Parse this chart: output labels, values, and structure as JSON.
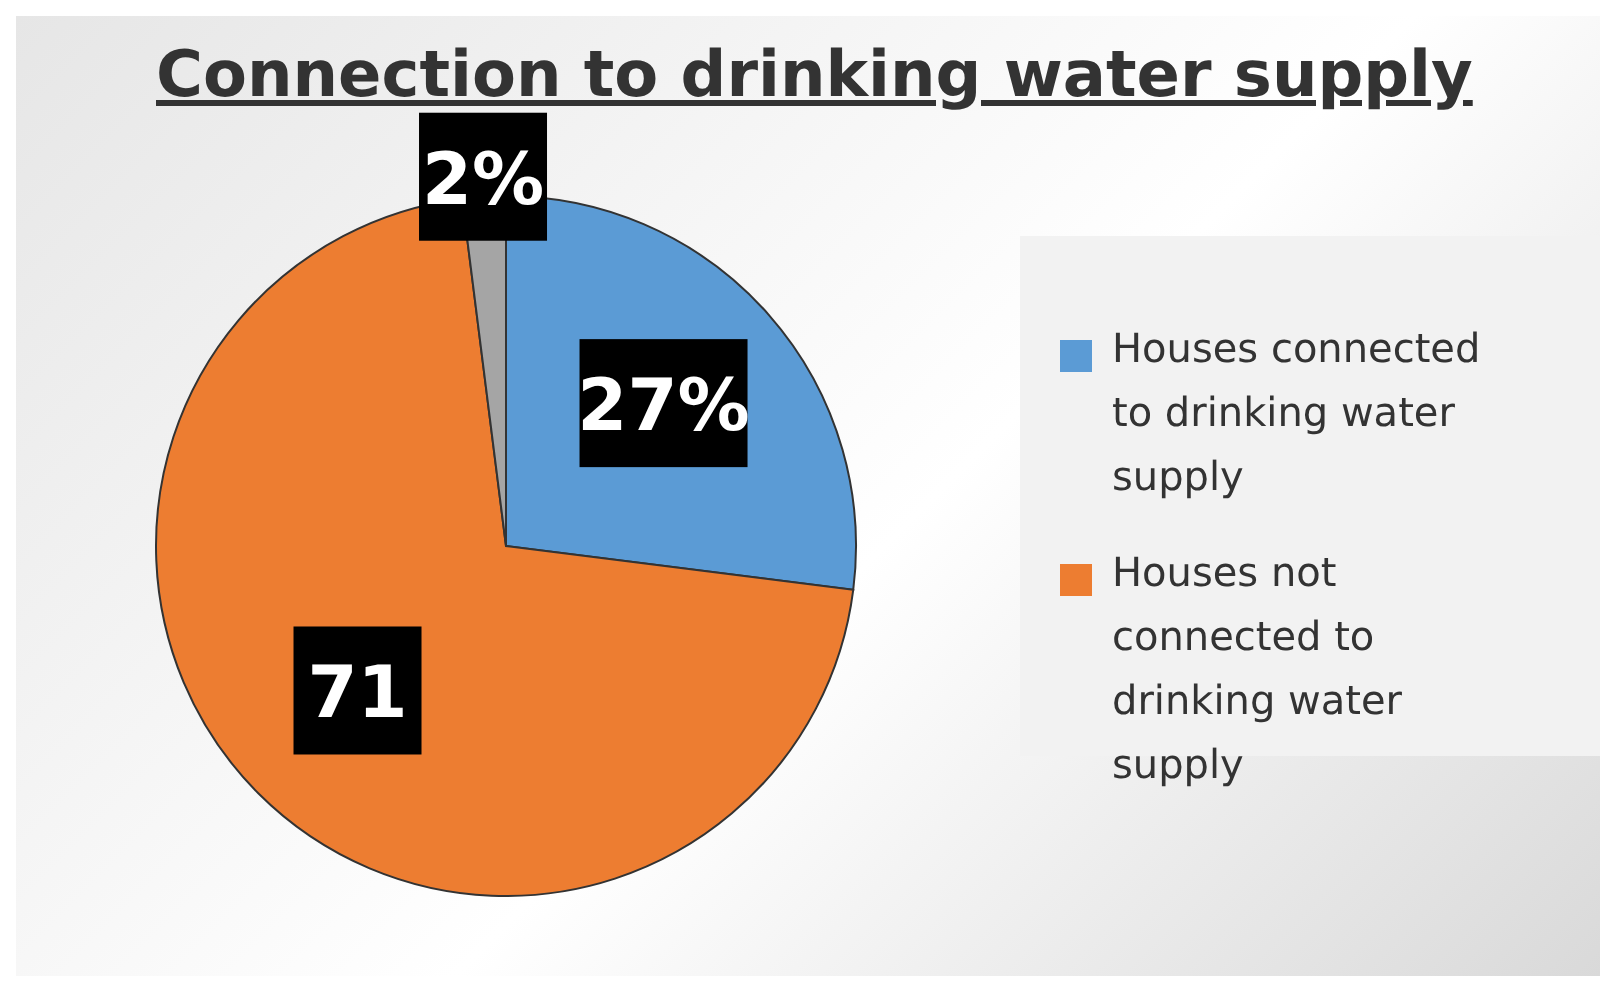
{
  "chart_data": {
    "type": "pie",
    "title": "Connection to drinking water supply",
    "categories": [
      "Houses connected to drinking water supply",
      "Houses not connected to drinking water supply",
      null
    ],
    "values": [
      27,
      71,
      2
    ],
    "value_labels": [
      "27%",
      "71",
      "2%"
    ],
    "colors": [
      "#5b9bd5",
      "#ed7d31",
      "#a5a5a5"
    ],
    "legend": "right"
  }
}
